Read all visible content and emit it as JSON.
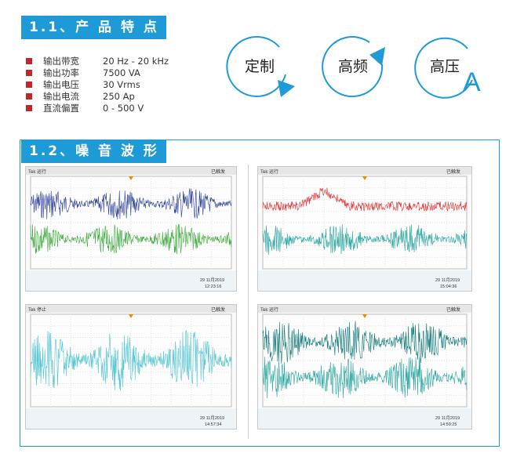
{
  "section1": {
    "title": "1.1、产 品 特 点"
  },
  "specs": [
    {
      "label": "输出带宽",
      "value": "20 Hz - 20 kHz"
    },
    {
      "label": "输出功率",
      "value": "7500 VA"
    },
    {
      "label": "输出电压",
      "value": "30 Vrms"
    },
    {
      "label": "输出电流",
      "value": "250 Ap"
    },
    {
      "label": "直流偏置",
      "value": "0 - 500 V"
    }
  ],
  "features": [
    {
      "label": "定制",
      "icon": "circular-arrow-icon"
    },
    {
      "label": "高频",
      "icon": "circular-arrow-icon"
    },
    {
      "label": "高压",
      "icon": "circular-arrow-icon"
    }
  ],
  "feature_accent": "A",
  "section2": {
    "title": "1.2、噪 音 波 形"
  },
  "scopes": [
    {
      "brand": "Tek",
      "mode": "运行",
      "status": "已触发",
      "date": "29 11月2019",
      "time": "12:23:16",
      "traces": [
        "#2b3f9a",
        "#3aa83a"
      ]
    },
    {
      "brand": "Tek",
      "mode": "运行",
      "status": "已触发",
      "date": "29 11月2019",
      "time": "15:04:36",
      "traces": [
        "#e03030",
        "#2aa6a0"
      ]
    },
    {
      "brand": "Tek",
      "mode": "停止",
      "status": "已触发",
      "date": "29 11月2019",
      "time": "14:57:34",
      "traces": [
        "#4fc4d0"
      ]
    },
    {
      "brand": "Tek",
      "mode": "运行",
      "status": "已触发",
      "date": "29 11月2019",
      "time": "14:59:25",
      "traces": [
        "#127a7a",
        "#2aa6a0"
      ]
    }
  ],
  "colors": {
    "accent": "#1e9ad6",
    "bullet": "#c0272d"
  }
}
